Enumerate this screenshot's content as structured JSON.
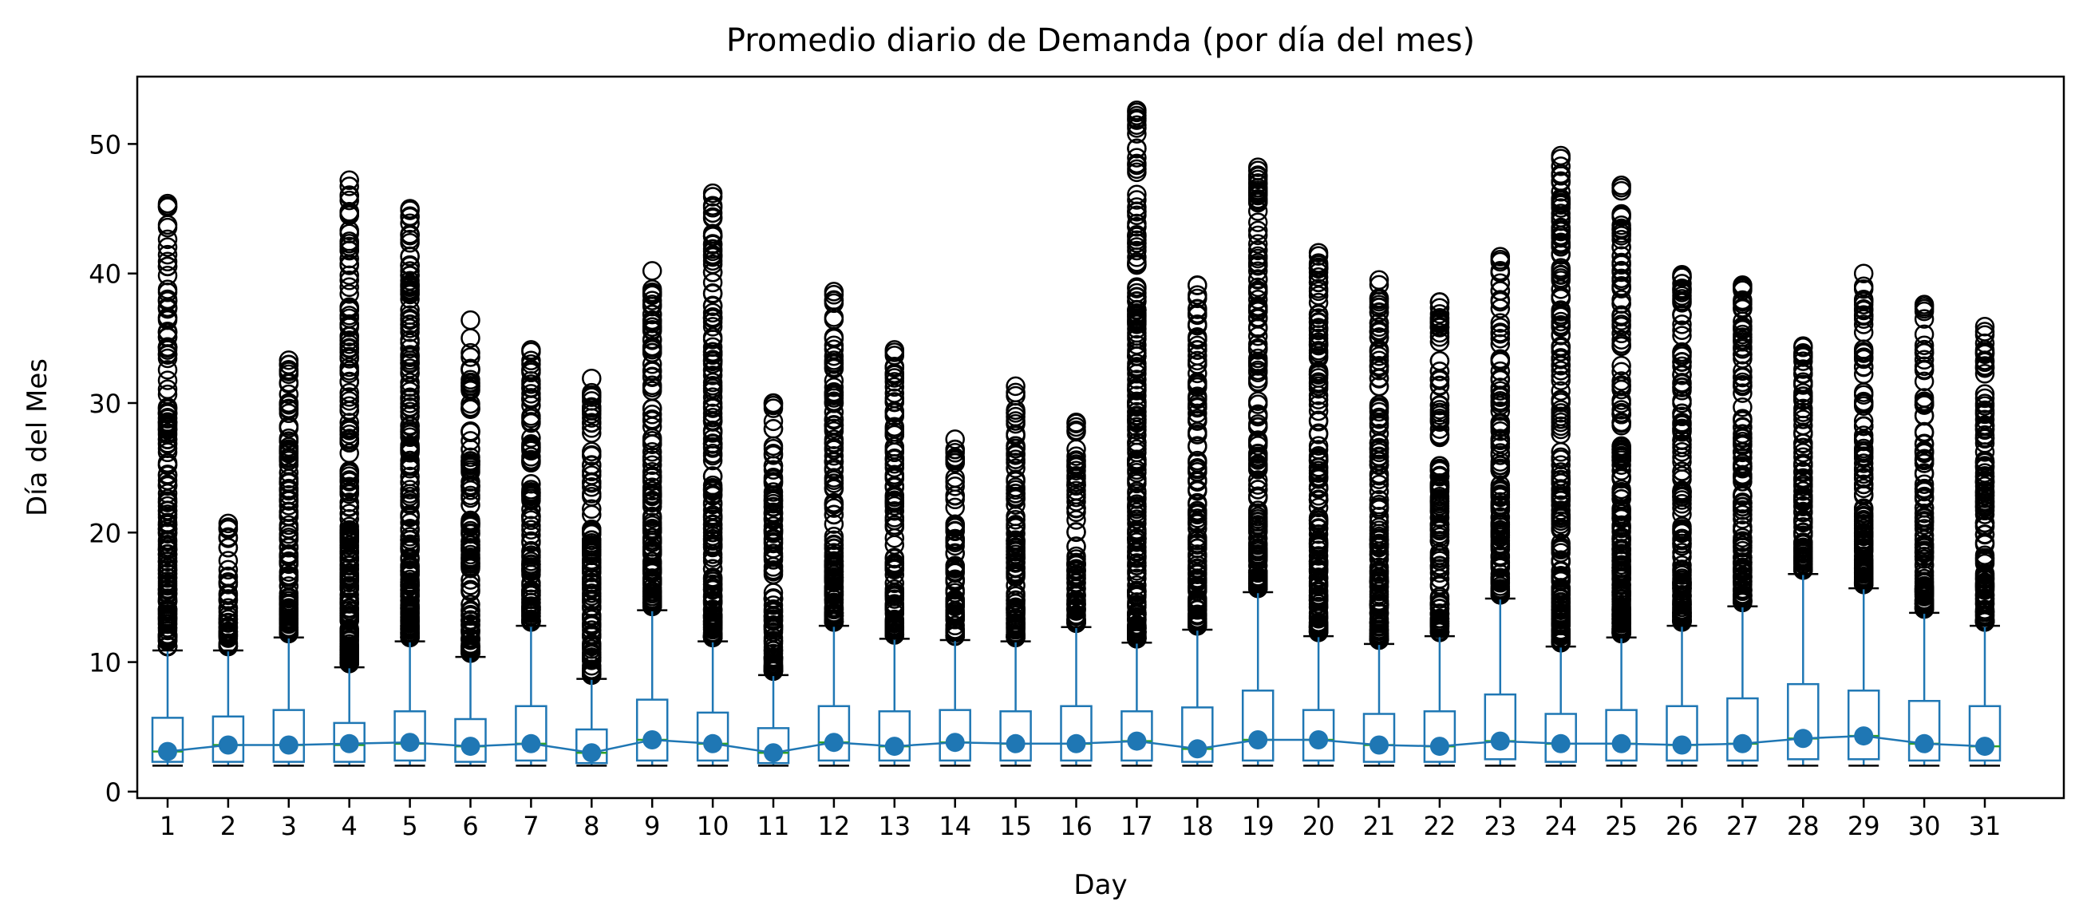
{
  "chart_data": {
    "type": "box",
    "title": "Promedio diario de Demanda (por día del mes)",
    "xlabel": "Day",
    "ylabel": "Día del Mes",
    "ylim": [
      -0.5,
      55.2
    ],
    "yticks": [
      0,
      10,
      20,
      30,
      40,
      50
    ],
    "grid": false,
    "colors": {
      "box": "#1f77b4",
      "median": "#2ca02c",
      "mean_marker": "#1f77b4",
      "mean_line": "#1f77b4",
      "flier": "#000000"
    },
    "categories": [
      "1",
      "2",
      "3",
      "4",
      "5",
      "6",
      "7",
      "8",
      "9",
      "10",
      "11",
      "12",
      "13",
      "14",
      "15",
      "16",
      "17",
      "18",
      "19",
      "20",
      "21",
      "22",
      "23",
      "24",
      "25",
      "26",
      "27",
      "28",
      "29",
      "30",
      "31"
    ],
    "boxes": [
      {
        "q1": 2.3,
        "median": 3.1,
        "q3": 5.7,
        "whisker_low": 2.0,
        "whisker_high": 10.9,
        "flier_max": 45.4
      },
      {
        "q1": 2.3,
        "median": 3.6,
        "q3": 5.8,
        "whisker_low": 2.0,
        "whisker_high": 10.9,
        "flier_max": 20.7
      },
      {
        "q1": 2.3,
        "median": 3.6,
        "q3": 6.3,
        "whisker_low": 2.0,
        "whisker_high": 11.9,
        "flier_max": 33.3
      },
      {
        "q1": 2.3,
        "median": 3.6,
        "q3": 5.3,
        "whisker_low": 2.0,
        "whisker_high": 9.6,
        "flier_max": 47.2
      },
      {
        "q1": 2.4,
        "median": 3.7,
        "q3": 6.2,
        "whisker_low": 2.0,
        "whisker_high": 11.6,
        "flier_max": 45.0
      },
      {
        "q1": 2.3,
        "median": 3.5,
        "q3": 5.6,
        "whisker_low": 2.0,
        "whisker_high": 10.4,
        "flier_max": 36.4
      },
      {
        "q1": 2.4,
        "median": 3.7,
        "q3": 6.6,
        "whisker_low": 2.0,
        "whisker_high": 12.8,
        "flier_max": 34.1
      },
      {
        "q1": 2.2,
        "median": 3.0,
        "q3": 4.8,
        "whisker_low": 2.0,
        "whisker_high": 8.7,
        "flier_max": 31.9
      },
      {
        "q1": 2.4,
        "median": 4.0,
        "q3": 7.1,
        "whisker_low": 2.0,
        "whisker_high": 14.0,
        "flier_max": 40.2
      },
      {
        "q1": 2.4,
        "median": 3.7,
        "q3": 6.1,
        "whisker_low": 2.0,
        "whisker_high": 11.6,
        "flier_max": 46.2
      },
      {
        "q1": 2.2,
        "median": 3.0,
        "q3": 4.9,
        "whisker_low": 2.0,
        "whisker_high": 9.0,
        "flier_max": 30.0
      },
      {
        "q1": 2.4,
        "median": 3.8,
        "q3": 6.6,
        "whisker_low": 2.0,
        "whisker_high": 12.8,
        "flier_max": 38.6
      },
      {
        "q1": 2.4,
        "median": 3.5,
        "q3": 6.2,
        "whisker_low": 2.0,
        "whisker_high": 11.8,
        "flier_max": 34.1
      },
      {
        "q1": 2.4,
        "median": 3.8,
        "q3": 6.3,
        "whisker_low": 2.0,
        "whisker_high": 11.7,
        "flier_max": 27.2
      },
      {
        "q1": 2.4,
        "median": 3.7,
        "q3": 6.2,
        "whisker_low": 2.0,
        "whisker_high": 11.6,
        "flier_max": 31.3
      },
      {
        "q1": 2.4,
        "median": 3.7,
        "q3": 6.6,
        "whisker_low": 2.0,
        "whisker_high": 12.7,
        "flier_max": 28.5
      },
      {
        "q1": 2.4,
        "median": 3.9,
        "q3": 6.2,
        "whisker_low": 2.0,
        "whisker_high": 11.5,
        "flier_max": 52.6
      },
      {
        "q1": 2.3,
        "median": 3.3,
        "q3": 6.5,
        "whisker_low": 2.0,
        "whisker_high": 12.5,
        "flier_max": 39.1
      },
      {
        "q1": 2.4,
        "median": 4.0,
        "q3": 7.8,
        "whisker_low": 2.0,
        "whisker_high": 15.4,
        "flier_max": 48.2
      },
      {
        "q1": 2.4,
        "median": 4.0,
        "q3": 6.3,
        "whisker_low": 2.0,
        "whisker_high": 12.0,
        "flier_max": 41.6
      },
      {
        "q1": 2.3,
        "median": 3.6,
        "q3": 6.0,
        "whisker_low": 2.0,
        "whisker_high": 11.4,
        "flier_max": 39.5
      },
      {
        "q1": 2.3,
        "median": 3.5,
        "q3": 6.2,
        "whisker_low": 2.0,
        "whisker_high": 12.0,
        "flier_max": 37.8
      },
      {
        "q1": 2.5,
        "median": 3.9,
        "q3": 7.5,
        "whisker_low": 2.0,
        "whisker_high": 14.9,
        "flier_max": 41.3
      },
      {
        "q1": 2.3,
        "median": 3.7,
        "q3": 6.0,
        "whisker_low": 2.0,
        "whisker_high": 11.2,
        "flier_max": 49.1
      },
      {
        "q1": 2.4,
        "median": 3.7,
        "q3": 6.3,
        "whisker_low": 2.0,
        "whisker_high": 11.9,
        "flier_max": 46.8
      },
      {
        "q1": 2.4,
        "median": 3.6,
        "q3": 6.6,
        "whisker_low": 2.0,
        "whisker_high": 12.8,
        "flier_max": 39.9
      },
      {
        "q1": 2.4,
        "median": 3.7,
        "q3": 7.2,
        "whisker_low": 2.0,
        "whisker_high": 14.3,
        "flier_max": 39.1
      },
      {
        "q1": 2.5,
        "median": 4.1,
        "q3": 8.3,
        "whisker_low": 2.0,
        "whisker_high": 16.8,
        "flier_max": 34.4
      },
      {
        "q1": 2.5,
        "median": 4.3,
        "q3": 7.8,
        "whisker_low": 2.0,
        "whisker_high": 15.7,
        "flier_max": 40.0
      },
      {
        "q1": 2.4,
        "median": 3.7,
        "q3": 7.0,
        "whisker_low": 2.0,
        "whisker_high": 13.8,
        "flier_max": 37.6
      },
      {
        "q1": 2.4,
        "median": 3.5,
        "q3": 6.6,
        "whisker_low": 2.0,
        "whisker_high": 12.8,
        "flier_max": 35.9
      }
    ],
    "means": [
      3.1,
      3.6,
      3.6,
      3.7,
      3.8,
      3.5,
      3.7,
      3.0,
      4.0,
      3.7,
      3.0,
      3.8,
      3.5,
      3.8,
      3.7,
      3.7,
      3.9,
      3.3,
      4.0,
      4.0,
      3.6,
      3.5,
      3.9,
      3.7,
      3.7,
      3.6,
      3.7,
      4.1,
      4.3,
      3.7,
      3.5
    ]
  }
}
